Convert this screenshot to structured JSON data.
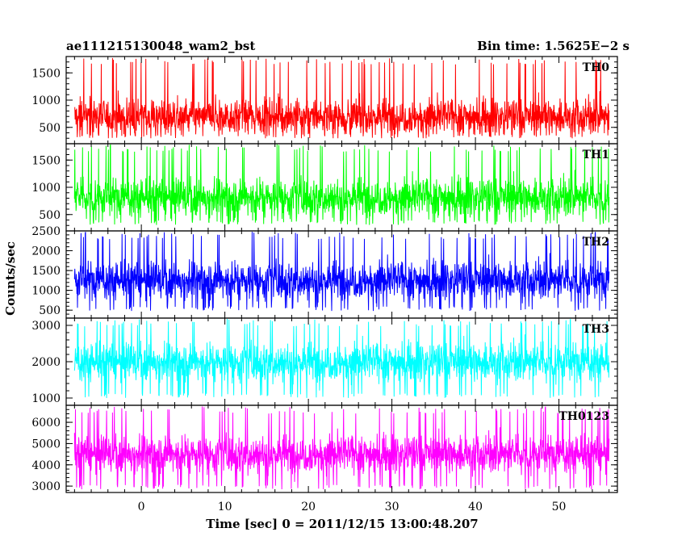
{
  "chart_data": {
    "type": "line",
    "title_left": "ae111215130048_wam2_bst",
    "title_right": "Bin time: 1.5625E−2 s",
    "xlabel": "Time [sec] 0 = 2011/12/15 13:00:48.207",
    "ylabel": "Counts/sec",
    "xlim": [
      -9,
      57
    ],
    "x_ticks": [
      "0",
      "10",
      "20",
      "30",
      "40",
      "50"
    ],
    "x_data_range": [
      -8,
      56
    ],
    "grid": false,
    "panels": [
      {
        "name": "TH0",
        "color": "#ff0000",
        "ylim": [
          200,
          1800
        ],
        "yticks": [
          "500",
          "1000",
          "1500"
        ],
        "mean": 700,
        "spread": 260,
        "min": 300,
        "max": 1780
      },
      {
        "name": "TH1",
        "color": "#00ff00",
        "ylim": [
          200,
          1800
        ],
        "yticks": [
          "500",
          "1000",
          "1500"
        ],
        "mean": 820,
        "spread": 280,
        "min": 310,
        "max": 1790
      },
      {
        "name": "TH2",
        "color": "#0000ff",
        "ylim": [
          300,
          2500
        ],
        "yticks": [
          "500",
          "1000",
          "1500",
          "2000",
          "2500"
        ],
        "mean": 1260,
        "spread": 380,
        "min": 480,
        "max": 2480
      },
      {
        "name": "TH3",
        "color": "#00ffff",
        "ylim": [
          800,
          3200
        ],
        "yticks": [
          "1000",
          "2000",
          "3000"
        ],
        "mean": 2000,
        "spread": 420,
        "min": 1000,
        "max": 3180
      },
      {
        "name": "TH0123",
        "color": "#ff00ff",
        "ylim": [
          2700,
          6800
        ],
        "yticks": [
          "3000",
          "4000",
          "5000",
          "6000"
        ],
        "mean": 4520,
        "spread": 700,
        "min": 2850,
        "max": 6750
      }
    ]
  }
}
